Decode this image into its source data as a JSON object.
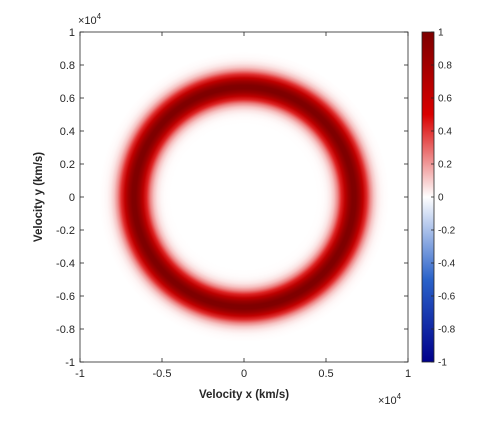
{
  "chart_data": {
    "type": "heatmap",
    "title": "",
    "xlabel": "Velocity x (km/s)",
    "ylabel": "Velocity y (km/s)",
    "x_multiplier": "×10",
    "x_multiplier_exp": "4",
    "y_multiplier": "×10",
    "y_multiplier_exp": "4",
    "xlim": [
      -1,
      1
    ],
    "ylim": [
      -1,
      1
    ],
    "xticks": [
      "-1",
      "-0.5",
      "0",
      "0.5",
      "1"
    ],
    "yticks": [
      "-1",
      "-0.8",
      "-0.6",
      "-0.4",
      "-0.2",
      "0",
      "0.2",
      "0.4",
      "0.6",
      "0.8",
      "1"
    ],
    "colorbar": {
      "range": [
        -1,
        1
      ],
      "ticks": [
        "-1",
        "-0.8",
        "-0.6",
        "-0.4",
        "-0.2",
        "0",
        "0.2",
        "0.4",
        "0.6",
        "0.8",
        "1"
      ],
      "colormap": [
        "#00008b",
        "#2a62c9",
        "#ffffff",
        "#d90000",
        "#7d0000"
      ]
    },
    "field": {
      "shape": "ring",
      "center": [
        0,
        0
      ],
      "ring_radius": 0.67,
      "ring_half_width": 0.07,
      "peak_value": 1.0,
      "background_value": 0.0
    }
  }
}
